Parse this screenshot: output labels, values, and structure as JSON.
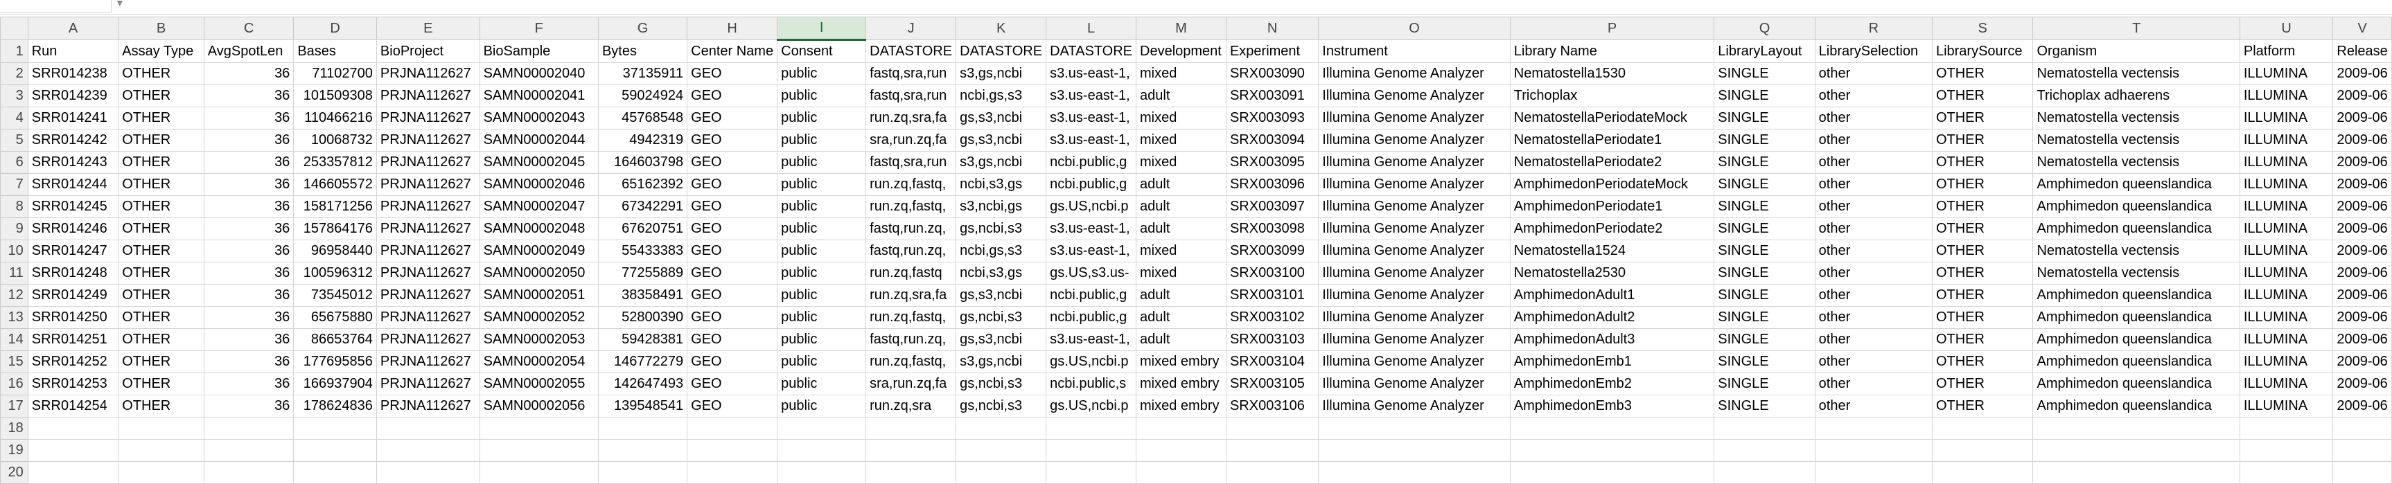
{
  "spreadsheet": {
    "selected_column": "I",
    "column_letters": [
      "A",
      "B",
      "C",
      "D",
      "E",
      "F",
      "G",
      "H",
      "I",
      "J",
      "K",
      "L",
      "M",
      "N",
      "O",
      "P",
      "Q",
      "R",
      "S",
      "T",
      "U",
      "V"
    ],
    "numeric_columns": [
      2,
      3,
      6
    ],
    "row_numbers": [
      "1",
      "2",
      "3",
      "4",
      "5",
      "6",
      "7",
      "8",
      "9",
      "10",
      "11",
      "12",
      "13",
      "14",
      "15",
      "16",
      "17",
      "18",
      "19",
      "20"
    ],
    "rows": [
      [
        "Run",
        "Assay Type",
        "AvgSpotLen",
        "Bases",
        "BioProject",
        "BioSample",
        "Bytes",
        "Center Name",
        "Consent",
        "DATASTORE",
        "DATASTORE",
        "DATASTORE",
        "Development",
        "Experiment",
        "Instrument",
        "Library Name",
        "LibraryLayout",
        "LibrarySelection",
        "LibrarySource",
        "Organism",
        "Platform",
        "Release"
      ],
      [
        "SRR014238",
        "OTHER",
        "36",
        "71102700",
        "PRJNA112627",
        "SAMN00002040",
        "37135911",
        "GEO",
        "public",
        "fastq,sra,run",
        "s3,gs,ncbi",
        "s3.us-east-1,",
        "mixed",
        "SRX003090",
        "Illumina Genome Analyzer",
        "Nematostella1530",
        "SINGLE",
        "other",
        "OTHER",
        "Nematostella vectensis",
        "ILLUMINA",
        "2009-06"
      ],
      [
        "SRR014239",
        "OTHER",
        "36",
        "101509308",
        "PRJNA112627",
        "SAMN00002041",
        "59024924",
        "GEO",
        "public",
        "fastq,sra,run",
        "ncbi,gs,s3",
        "s3.us-east-1,",
        "adult",
        "SRX003091",
        "Illumina Genome Analyzer",
        "Trichoplax",
        "SINGLE",
        "other",
        "OTHER",
        "Trichoplax adhaerens",
        "ILLUMINA",
        "2009-06"
      ],
      [
        "SRR014241",
        "OTHER",
        "36",
        "110466216",
        "PRJNA112627",
        "SAMN00002043",
        "45768548",
        "GEO",
        "public",
        "run.zq,sra,fa",
        "gs,s3,ncbi",
        "s3.us-east-1,",
        "mixed",
        "SRX003093",
        "Illumina Genome Analyzer",
        "NematostellaPeriodateMock",
        "SINGLE",
        "other",
        "OTHER",
        "Nematostella vectensis",
        "ILLUMINA",
        "2009-06"
      ],
      [
        "SRR014242",
        "OTHER",
        "36",
        "10068732",
        "PRJNA112627",
        "SAMN00002044",
        "4942319",
        "GEO",
        "public",
        "sra,run.zq,fa",
        "gs,s3,ncbi",
        "s3.us-east-1,",
        "mixed",
        "SRX003094",
        "Illumina Genome Analyzer",
        "NematostellaPeriodate1",
        "SINGLE",
        "other",
        "OTHER",
        "Nematostella vectensis",
        "ILLUMINA",
        "2009-06"
      ],
      [
        "SRR014243",
        "OTHER",
        "36",
        "253357812",
        "PRJNA112627",
        "SAMN00002045",
        "164603798",
        "GEO",
        "public",
        "fastq,sra,run",
        "s3,gs,ncbi",
        "ncbi.public,g",
        "mixed",
        "SRX003095",
        "Illumina Genome Analyzer",
        "NematostellaPeriodate2",
        "SINGLE",
        "other",
        "OTHER",
        "Nematostella vectensis",
        "ILLUMINA",
        "2009-06"
      ],
      [
        "SRR014244",
        "OTHER",
        "36",
        "146605572",
        "PRJNA112627",
        "SAMN00002046",
        "65162392",
        "GEO",
        "public",
        "run.zq,fastq,",
        "ncbi,s3,gs",
        "ncbi.public,g",
        "adult",
        "SRX003096",
        "Illumina Genome Analyzer",
        "AmphimedonPeriodateMock",
        "SINGLE",
        "other",
        "OTHER",
        "Amphimedon queenslandica",
        "ILLUMINA",
        "2009-06"
      ],
      [
        "SRR014245",
        "OTHER",
        "36",
        "158171256",
        "PRJNA112627",
        "SAMN00002047",
        "67342291",
        "GEO",
        "public",
        "run.zq,fastq,",
        "s3,ncbi,gs",
        "gs.US,ncbi.p",
        "adult",
        "SRX003097",
        "Illumina Genome Analyzer",
        "AmphimedonPeriodate1",
        "SINGLE",
        "other",
        "OTHER",
        "Amphimedon queenslandica",
        "ILLUMINA",
        "2009-06"
      ],
      [
        "SRR014246",
        "OTHER",
        "36",
        "157864176",
        "PRJNA112627",
        "SAMN00002048",
        "67620751",
        "GEO",
        "public",
        "fastq,run.zq,",
        "gs,ncbi,s3",
        "s3.us-east-1,",
        "adult",
        "SRX003098",
        "Illumina Genome Analyzer",
        "AmphimedonPeriodate2",
        "SINGLE",
        "other",
        "OTHER",
        "Amphimedon queenslandica",
        "ILLUMINA",
        "2009-06"
      ],
      [
        "SRR014247",
        "OTHER",
        "36",
        "96958440",
        "PRJNA112627",
        "SAMN00002049",
        "55433383",
        "GEO",
        "public",
        "fastq,run.zq,",
        "ncbi,gs,s3",
        "s3.us-east-1,",
        "mixed",
        "SRX003099",
        "Illumina Genome Analyzer",
        "Nematostella1524",
        "SINGLE",
        "other",
        "OTHER",
        "Nematostella vectensis",
        "ILLUMINA",
        "2009-06"
      ],
      [
        "SRR014248",
        "OTHER",
        "36",
        "100596312",
        "PRJNA112627",
        "SAMN00002050",
        "77255889",
        "GEO",
        "public",
        "run.zq,fastq",
        "ncbi,s3,gs",
        "gs.US,s3.us-",
        "mixed",
        "SRX003100",
        "Illumina Genome Analyzer",
        "Nematostella2530",
        "SINGLE",
        "other",
        "OTHER",
        "Nematostella vectensis",
        "ILLUMINA",
        "2009-06"
      ],
      [
        "SRR014249",
        "OTHER",
        "36",
        "73545012",
        "PRJNA112627",
        "SAMN00002051",
        "38358491",
        "GEO",
        "public",
        "run.zq,sra,fa",
        "gs,s3,ncbi",
        "ncbi.public,g",
        "adult",
        "SRX003101",
        "Illumina Genome Analyzer",
        "AmphimedonAdult1",
        "SINGLE",
        "other",
        "OTHER",
        "Amphimedon queenslandica",
        "ILLUMINA",
        "2009-06"
      ],
      [
        "SRR014250",
        "OTHER",
        "36",
        "65675880",
        "PRJNA112627",
        "SAMN00002052",
        "52800390",
        "GEO",
        "public",
        "run.zq,fastq,",
        "gs,ncbi,s3",
        "ncbi.public,g",
        "adult",
        "SRX003102",
        "Illumina Genome Analyzer",
        "AmphimedonAdult2",
        "SINGLE",
        "other",
        "OTHER",
        "Amphimedon queenslandica",
        "ILLUMINA",
        "2009-06"
      ],
      [
        "SRR014251",
        "OTHER",
        "36",
        "86653764",
        "PRJNA112627",
        "SAMN00002053",
        "59428381",
        "GEO",
        "public",
        "fastq,run.zq,",
        "gs,s3,ncbi",
        "s3.us-east-1,",
        "adult",
        "SRX003103",
        "Illumina Genome Analyzer",
        "AmphimedonAdult3",
        "SINGLE",
        "other",
        "OTHER",
        "Amphimedon queenslandica",
        "ILLUMINA",
        "2009-06"
      ],
      [
        "SRR014252",
        "OTHER",
        "36",
        "177695856",
        "PRJNA112627",
        "SAMN00002054",
        "146772279",
        "GEO",
        "public",
        "run.zq,fastq,",
        "s3,gs,ncbi",
        "gs.US,ncbi.p",
        "mixed embry",
        "SRX003104",
        "Illumina Genome Analyzer",
        "AmphimedonEmb1",
        "SINGLE",
        "other",
        "OTHER",
        "Amphimedon queenslandica",
        "ILLUMINA",
        "2009-06"
      ],
      [
        "SRR014253",
        "OTHER",
        "36",
        "166937904",
        "PRJNA112627",
        "SAMN00002055",
        "142647493",
        "GEO",
        "public",
        "sra,run.zq,fa",
        "gs,ncbi,s3",
        "ncbi.public,s",
        "mixed embry",
        "SRX003105",
        "Illumina Genome Analyzer",
        "AmphimedonEmb2",
        "SINGLE",
        "other",
        "OTHER",
        "Amphimedon queenslandica",
        "ILLUMINA",
        "2009-06"
      ],
      [
        "SRR014254",
        "OTHER",
        "36",
        "178624836",
        "PRJNA112627",
        "SAMN00002056",
        "139548541",
        "GEO",
        "public",
        "run.zq,sra",
        "gs,ncbi,s3",
        "gs.US,ncbi.p",
        "mixed embry",
        "SRX003106",
        "Illumina Genome Analyzer",
        "AmphimedonEmb3",
        "SINGLE",
        "other",
        "OTHER",
        "Amphimedon queenslandica",
        "ILLUMINA",
        "2009-06"
      ],
      [
        "",
        "",
        "",
        "",
        "",
        "",
        "",
        "",
        "",
        "",
        "",
        "",
        "",
        "",
        "",
        "",
        "",
        "",
        "",
        "",
        "",
        ""
      ],
      [
        "",
        "",
        "",
        "",
        "",
        "",
        "",
        "",
        "",
        "",
        "",
        "",
        "",
        "",
        "",
        "",
        "",
        "",
        "",
        "",
        "",
        ""
      ],
      [
        "",
        "",
        "",
        "",
        "",
        "",
        "",
        "",
        "",
        "",
        "",
        "",
        "",
        "",
        "",
        "",
        "",
        "",
        "",
        "",
        "",
        ""
      ]
    ]
  }
}
